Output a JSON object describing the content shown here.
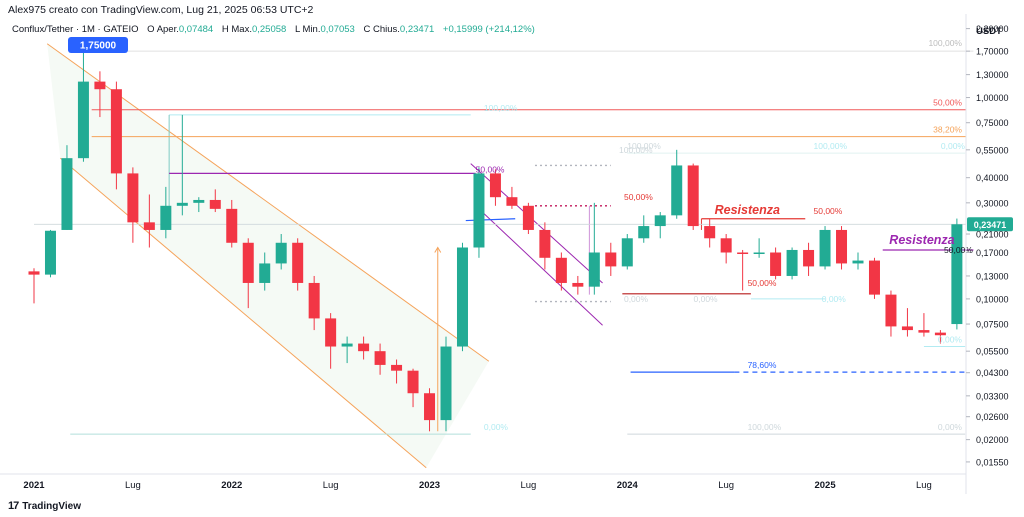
{
  "header": {
    "author_line": "Alex975 creato con TradingView.com, Lug 21, 2025 06:53 UTC+2"
  },
  "legend": {
    "symbol": "Conflux/Tether · 1M · GATEIO",
    "open_label": "O",
    "open_key": "Aper.",
    "open_value": "0,07484",
    "high_label": "H",
    "high_key": "Max.",
    "high_value": "0,25058",
    "low_label": "L",
    "low_key": "Min.",
    "low_value": "0,07053",
    "close_label": "C",
    "close_key": "Chius.",
    "close_value": "0,23471",
    "change_value": "+0,15999 (+214,12%)"
  },
  "footer": {
    "brand": "TradingView",
    "logo": "17"
  },
  "colors": {
    "up": "#22ab94",
    "down": "#f23645",
    "orange": "#f5a35a",
    "purple": "#9c27b0",
    "cyan": "#80deea",
    "blue": "#2962ff",
    "red_line": "#f15959"
  },
  "chart_data": {
    "type": "candlestick",
    "currency": "USDT",
    "scale": "log",
    "ylim": [
      0.0135,
      2.6
    ],
    "price_ticks": [
      "2,20000",
      "1,70000",
      "1,30000",
      "1,00000",
      "0,75000",
      "0,55000",
      "0,40000",
      "0,30000",
      "0,21000",
      "0,17000",
      "0,13000",
      "0,10000",
      "0,07500",
      "0,05500",
      "0,04300",
      "0,03300",
      "0,02600",
      "0,02000",
      "0,01550"
    ],
    "price_tick_values": [
      2.2,
      1.7,
      1.3,
      1.0,
      0.75,
      0.55,
      0.4,
      0.3,
      0.21,
      0.17,
      0.13,
      0.1,
      0.075,
      0.055,
      0.043,
      0.033,
      0.026,
      0.02,
      0.0155
    ],
    "time_ticks": [
      {
        "label": "2021",
        "index": 0,
        "bold": true
      },
      {
        "label": "Lug",
        "index": 6,
        "bold": false
      },
      {
        "label": "2022",
        "index": 12,
        "bold": true
      },
      {
        "label": "Lug",
        "index": 18,
        "bold": false
      },
      {
        "label": "2023",
        "index": 24,
        "bold": true
      },
      {
        "label": "Lug",
        "index": 30,
        "bold": false
      },
      {
        "label": "2024",
        "index": 36,
        "bold": true
      },
      {
        "label": "Lug",
        "index": 42,
        "bold": false
      },
      {
        "label": "2025",
        "index": 48,
        "bold": true
      },
      {
        "label": "Lug",
        "index": 54,
        "bold": false
      }
    ],
    "candles": [
      [
        0.137,
        0.142,
        0.095,
        0.132
      ],
      [
        0.132,
        0.22,
        0.128,
        0.218
      ],
      [
        0.22,
        0.58,
        0.22,
        0.5
      ],
      [
        0.5,
        1.75,
        0.48,
        1.2
      ],
      [
        1.2,
        1.35,
        0.8,
        1.1
      ],
      [
        1.1,
        1.2,
        0.35,
        0.42
      ],
      [
        0.42,
        0.45,
        0.19,
        0.24
      ],
      [
        0.24,
        0.33,
        0.18,
        0.22
      ],
      [
        0.22,
        0.36,
        0.2,
        0.29
      ],
      [
        0.29,
        0.82,
        0.26,
        0.3
      ],
      [
        0.3,
        0.32,
        0.27,
        0.31
      ],
      [
        0.31,
        0.35,
        0.27,
        0.28
      ],
      [
        0.28,
        0.31,
        0.18,
        0.19
      ],
      [
        0.19,
        0.2,
        0.09,
        0.12
      ],
      [
        0.12,
        0.17,
        0.11,
        0.15
      ],
      [
        0.15,
        0.21,
        0.14,
        0.19
      ],
      [
        0.19,
        0.2,
        0.11,
        0.12
      ],
      [
        0.12,
        0.13,
        0.07,
        0.08
      ],
      [
        0.08,
        0.085,
        0.045,
        0.058
      ],
      [
        0.058,
        0.065,
        0.048,
        0.06
      ],
      [
        0.06,
        0.065,
        0.05,
        0.055
      ],
      [
        0.055,
        0.06,
        0.042,
        0.047
      ],
      [
        0.047,
        0.05,
        0.038,
        0.044
      ],
      [
        0.044,
        0.045,
        0.029,
        0.034
      ],
      [
        0.034,
        0.036,
        0.022,
        0.025
      ],
      [
        0.025,
        0.065,
        0.022,
        0.058
      ],
      [
        0.058,
        0.19,
        0.055,
        0.18
      ],
      [
        0.18,
        0.45,
        0.16,
        0.42
      ],
      [
        0.42,
        0.44,
        0.29,
        0.32
      ],
      [
        0.32,
        0.36,
        0.28,
        0.29
      ],
      [
        0.29,
        0.3,
        0.21,
        0.22
      ],
      [
        0.22,
        0.24,
        0.14,
        0.16
      ],
      [
        0.16,
        0.17,
        0.11,
        0.12
      ],
      [
        0.12,
        0.13,
        0.105,
        0.115
      ],
      [
        0.115,
        0.3,
        0.105,
        0.17
      ],
      [
        0.17,
        0.19,
        0.13,
        0.145
      ],
      [
        0.145,
        0.21,
        0.14,
        0.2
      ],
      [
        0.2,
        0.26,
        0.19,
        0.23
      ],
      [
        0.23,
        0.27,
        0.2,
        0.26
      ],
      [
        0.26,
        0.55,
        0.25,
        0.46
      ],
      [
        0.46,
        0.47,
        0.22,
        0.23
      ],
      [
        0.23,
        0.25,
        0.18,
        0.2
      ],
      [
        0.2,
        0.21,
        0.15,
        0.17
      ],
      [
        0.17,
        0.175,
        0.11,
        0.168
      ],
      [
        0.168,
        0.2,
        0.16,
        0.17
      ],
      [
        0.17,
        0.18,
        0.125,
        0.13
      ],
      [
        0.13,
        0.18,
        0.125,
        0.175
      ],
      [
        0.175,
        0.19,
        0.13,
        0.145
      ],
      [
        0.145,
        0.23,
        0.14,
        0.22
      ],
      [
        0.22,
        0.23,
        0.14,
        0.15
      ],
      [
        0.15,
        0.17,
        0.14,
        0.155
      ],
      [
        0.155,
        0.16,
        0.1,
        0.105
      ],
      [
        0.105,
        0.11,
        0.065,
        0.073
      ],
      [
        0.073,
        0.09,
        0.065,
        0.07
      ],
      [
        0.07,
        0.085,
        0.065,
        0.068
      ],
      [
        0.068,
        0.07,
        0.06,
        0.066
      ],
      [
        0.075,
        0.25058,
        0.07053,
        0.23471
      ]
    ],
    "annotations": [
      {
        "kind": "badge",
        "text": "1,75000"
      },
      {
        "kind": "price_label",
        "text": "0,23471"
      },
      {
        "kind": "text",
        "text": "100,00%"
      },
      {
        "kind": "text",
        "text": "50,00%"
      },
      {
        "kind": "text",
        "text": "38,20%"
      },
      {
        "kind": "text",
        "text": "0,00%"
      },
      {
        "kind": "text",
        "text": "100,00%"
      },
      {
        "kind": "text",
        "text": "100,00%"
      },
      {
        "kind": "text",
        "text": "50,00%"
      },
      {
        "kind": "text",
        "text": "50,00%"
      },
      {
        "kind": "text",
        "text": "Resistenza"
      },
      {
        "kind": "text",
        "text": "50,00%"
      },
      {
        "kind": "text",
        "text": "Resistenza"
      },
      {
        "kind": "text",
        "text": "50,00%"
      },
      {
        "kind": "text",
        "text": "0,00%"
      },
      {
        "kind": "text",
        "text": "0,00%"
      },
      {
        "kind": "text",
        "text": "0,00%"
      },
      {
        "kind": "text",
        "text": "78,60%"
      },
      {
        "kind": "text",
        "text": "0,00%"
      },
      {
        "kind": "text",
        "text": "100,00%"
      },
      {
        "kind": "text",
        "text": "0,00%"
      },
      {
        "kind": "text",
        "text": "50,00%"
      },
      {
        "kind": "text",
        "text": "100,00%"
      },
      {
        "kind": "text",
        "text": "100,00%"
      },
      {
        "kind": "text",
        "text": "0,00%"
      }
    ]
  }
}
